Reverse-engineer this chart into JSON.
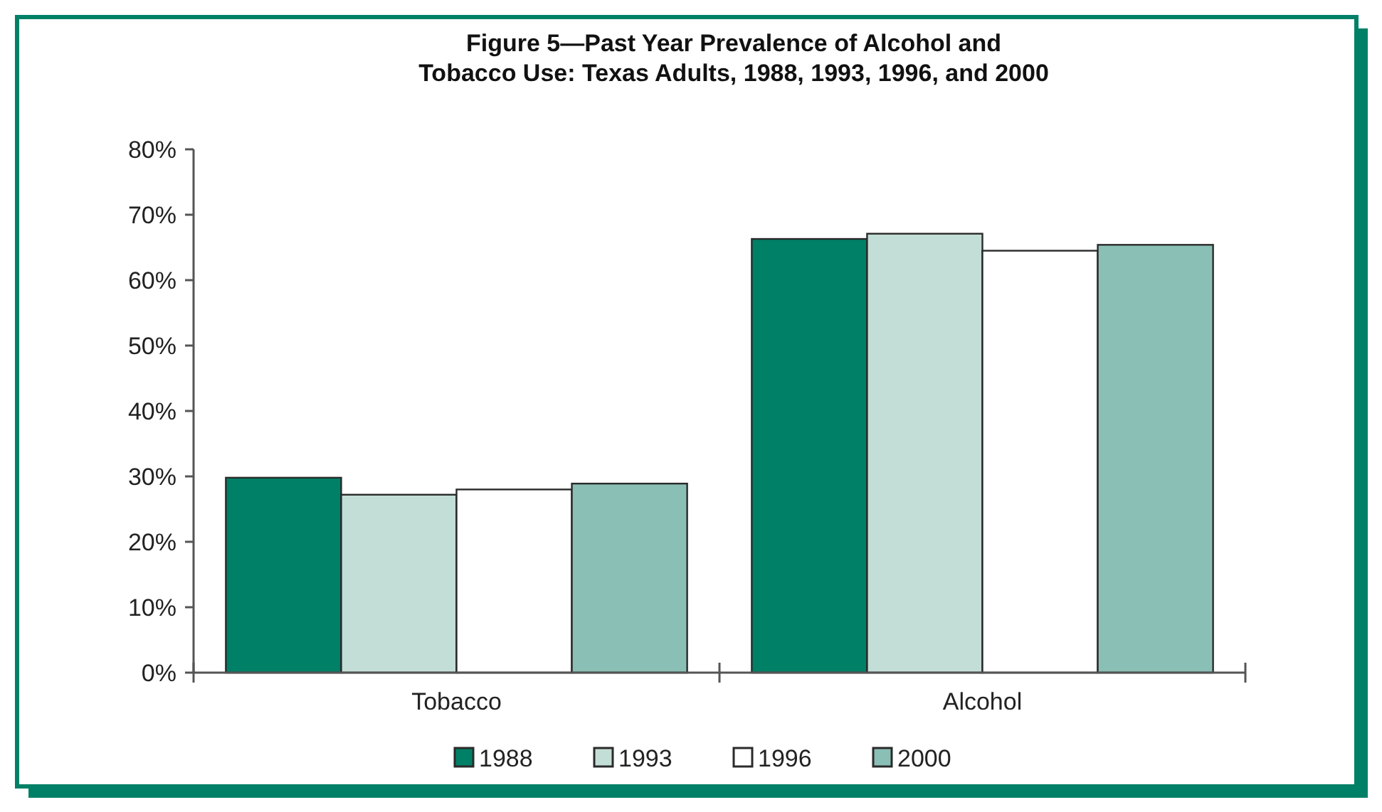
{
  "chart_data": {
    "type": "bar",
    "title": "Figure 5—Past Year Prevalence of Alcohol and\nTobacco Use: Texas Adults, 1988, 1993, 1996, and 2000",
    "categories": [
      "Tobacco",
      "Alcohol"
    ],
    "series": [
      {
        "name": "1988",
        "color": "#008066",
        "values": [
          29.8,
          66.3
        ]
      },
      {
        "name": "1993",
        "color": "#c3ded6",
        "values": [
          27.2,
          67.1
        ]
      },
      {
        "name": "1996",
        "color": "#ffffff",
        "values": [
          28.0,
          64.5
        ]
      },
      {
        "name": "2000",
        "color": "#8abfb5",
        "values": [
          28.9,
          65.4
        ]
      }
    ],
    "ylim": [
      0,
      80
    ],
    "yticks": [
      {
        "value": 0,
        "label": "0%"
      },
      {
        "value": 10,
        "label": "10%"
      },
      {
        "value": 20,
        "label": "20%"
      },
      {
        "value": 30,
        "label": "30%"
      },
      {
        "value": 40,
        "label": "40%"
      },
      {
        "value": 50,
        "label": "50%"
      },
      {
        "value": 60,
        "label": "60%"
      },
      {
        "value": 70,
        "label": "70%"
      },
      {
        "value": 80,
        "label": "80%"
      }
    ],
    "grid": false,
    "legend": "bottom"
  }
}
